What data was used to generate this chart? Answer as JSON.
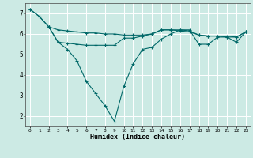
{
  "xlabel": "Humidex (Indice chaleur)",
  "bg_color": "#cceae4",
  "grid_color": "#ffffff",
  "line_color": "#006868",
  "xlim": [
    -0.5,
    23.5
  ],
  "ylim": [
    1.5,
    7.5
  ],
  "yticks": [
    2,
    3,
    4,
    5,
    6,
    7
  ],
  "xticks": [
    0,
    1,
    2,
    3,
    4,
    5,
    6,
    7,
    8,
    9,
    10,
    11,
    12,
    13,
    14,
    15,
    16,
    17,
    18,
    19,
    20,
    21,
    22,
    23
  ],
  "series1_x": [
    0,
    1,
    2,
    3,
    4,
    5,
    6,
    7,
    8,
    9,
    10,
    11,
    12,
    13,
    14,
    15,
    16,
    17,
    18,
    19,
    20,
    21,
    22,
    23
  ],
  "series1_y": [
    7.2,
    6.85,
    6.35,
    6.2,
    6.15,
    6.1,
    6.05,
    6.05,
    6.0,
    6.0,
    5.95,
    5.95,
    5.95,
    6.0,
    6.2,
    6.2,
    6.15,
    6.1,
    5.95,
    5.9,
    5.9,
    5.9,
    5.85,
    6.1
  ],
  "series2_x": [
    0,
    1,
    2,
    3,
    4,
    5,
    6,
    7,
    8,
    9,
    10,
    11,
    12,
    13,
    14,
    15,
    16,
    17,
    18,
    19,
    20,
    21,
    22,
    23
  ],
  "series2_y": [
    7.2,
    6.85,
    6.35,
    5.6,
    5.25,
    4.7,
    3.7,
    3.1,
    2.5,
    1.75,
    3.45,
    4.55,
    5.25,
    5.35,
    5.75,
    6.0,
    6.2,
    6.2,
    5.5,
    5.5,
    5.85,
    5.85,
    5.6,
    6.1
  ],
  "series3_x": [
    2,
    3,
    4,
    5,
    6,
    7,
    8,
    9,
    10,
    11,
    12,
    13,
    14,
    15,
    16,
    17,
    18,
    19,
    20,
    21,
    22,
    23
  ],
  "series3_y": [
    6.35,
    5.6,
    5.55,
    5.5,
    5.45,
    5.45,
    5.45,
    5.45,
    5.8,
    5.8,
    5.9,
    6.0,
    6.2,
    6.2,
    6.2,
    6.15,
    5.95,
    5.9,
    5.9,
    5.85,
    5.85,
    6.1
  ]
}
